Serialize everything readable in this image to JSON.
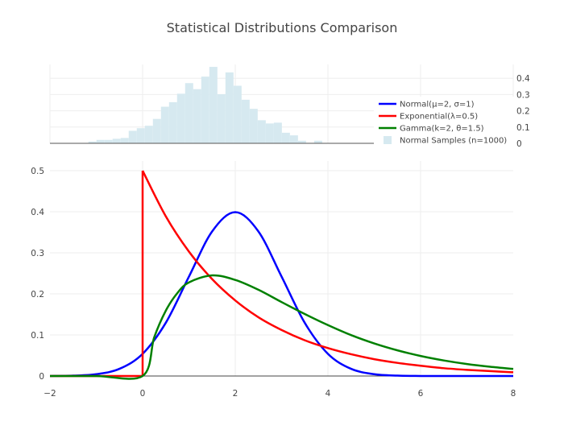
{
  "chart_data": [
    {
      "type": "bar",
      "panel": "top",
      "title": "Statistical Distributions Comparison",
      "series_name": "Normal Samples (n=1000)",
      "color": "#d6e9f0",
      "bin_start": -1.17,
      "bin_width": 0.174,
      "values": [
        0.011,
        0.021,
        0.021,
        0.028,
        0.033,
        0.077,
        0.093,
        0.108,
        0.15,
        0.225,
        0.253,
        0.305,
        0.37,
        0.333,
        0.41,
        0.47,
        0.302,
        0.436,
        0.354,
        0.268,
        0.212,
        0.142,
        0.122,
        0.127,
        0.065,
        0.049,
        0.016,
        0.003,
        0.016
      ],
      "xlim": [
        -2,
        8
      ],
      "ylim": [
        0,
        0.48
      ],
      "yticks": [
        "0",
        "0.1",
        "0.2",
        "0.3",
        "0.4"
      ],
      "ytick_values": [
        0,
        0.1,
        0.2,
        0.3,
        0.4
      ],
      "yaxis_side": "right",
      "grid": true
    },
    {
      "type": "line",
      "panel": "main",
      "xlim": [
        -2,
        8
      ],
      "ylim": [
        0,
        0.5
      ],
      "xticks": [
        "−2",
        "0",
        "2",
        "4",
        "6",
        "8"
      ],
      "xtick_values": [
        -2,
        0,
        2,
        4,
        6,
        8
      ],
      "yticks": [
        "0",
        "0.1",
        "0.2",
        "0.3",
        "0.4",
        "0.5"
      ],
      "ytick_values": [
        0,
        0.1,
        0.2,
        0.3,
        0.4,
        0.5
      ],
      "grid": true,
      "legend_placement": "top-right",
      "series": [
        {
          "name": "Normal(μ=2, σ=1)",
          "color": "#0000ff",
          "points": [
            [
              -2,
              0.0001
            ],
            [
              -1.5,
              0.0009
            ],
            [
              -1,
              0.0044
            ],
            [
              -0.5,
              0.0175
            ],
            [
              0,
              0.054
            ],
            [
              0.5,
              0.1295
            ],
            [
              1,
              0.242
            ],
            [
              1.5,
              0.352
            ],
            [
              2,
              0.399
            ],
            [
              2.5,
              0.352
            ],
            [
              3,
              0.242
            ],
            [
              3.5,
              0.1295
            ],
            [
              4,
              0.054
            ],
            [
              4.5,
              0.0175
            ],
            [
              5,
              0.0044
            ],
            [
              5.5,
              0.0009
            ],
            [
              6,
              0.0001
            ],
            [
              6.5,
              0
            ],
            [
              7,
              0
            ],
            [
              7.5,
              0
            ],
            [
              8,
              0
            ]
          ]
        },
        {
          "name": "Exponential(λ=0.5)",
          "color": "#ff0000",
          "points": [
            [
              -2,
              0
            ],
            [
              -1,
              0
            ],
            [
              0,
              0
            ],
            [
              0,
              0.5
            ],
            [
              0.5,
              0.389
            ],
            [
              1,
              0.303
            ],
            [
              1.5,
              0.236
            ],
            [
              2,
              0.184
            ],
            [
              2.5,
              0.143
            ],
            [
              3,
              0.112
            ],
            [
              3.5,
              0.087
            ],
            [
              4,
              0.068
            ],
            [
              4.5,
              0.053
            ],
            [
              5,
              0.041
            ],
            [
              5.5,
              0.032
            ],
            [
              6,
              0.025
            ],
            [
              6.5,
              0.019
            ],
            [
              7,
              0.015
            ],
            [
              7.5,
              0.012
            ],
            [
              8,
              0.009
            ]
          ]
        },
        {
          "name": "Gamma(k=2, θ=1.5)",
          "color": "#008000",
          "points": [
            [
              -2,
              0
            ],
            [
              -1,
              0
            ],
            [
              0,
              0
            ],
            [
              0.25,
              0.094
            ],
            [
              0.5,
              0.159
            ],
            [
              0.75,
              0.202
            ],
            [
              1,
              0.228
            ],
            [
              1.5,
              0.245
            ],
            [
              2,
              0.234
            ],
            [
              2.5,
              0.21
            ],
            [
              3,
              0.18
            ],
            [
              3.5,
              0.151
            ],
            [
              4,
              0.124
            ],
            [
              4.5,
              0.0996
            ],
            [
              5,
              0.0793
            ],
            [
              5.5,
              0.0625
            ],
            [
              6,
              0.0488
            ],
            [
              6.5,
              0.0379
            ],
            [
              7,
              0.0292
            ],
            [
              7.5,
              0.0225
            ],
            [
              8,
              0.0172
            ]
          ]
        }
      ]
    }
  ],
  "legend": [
    {
      "label": "Normal(μ=2, σ=1)",
      "color": "#0000ff",
      "kind": "line"
    },
    {
      "label": "Exponential(λ=0.5)",
      "color": "#ff0000",
      "kind": "line"
    },
    {
      "label": "Gamma(k=2, θ=1.5)",
      "color": "#008000",
      "kind": "line"
    },
    {
      "label": "Normal Samples (n=1000)",
      "color": "#d6e9f0",
      "kind": "box"
    }
  ]
}
